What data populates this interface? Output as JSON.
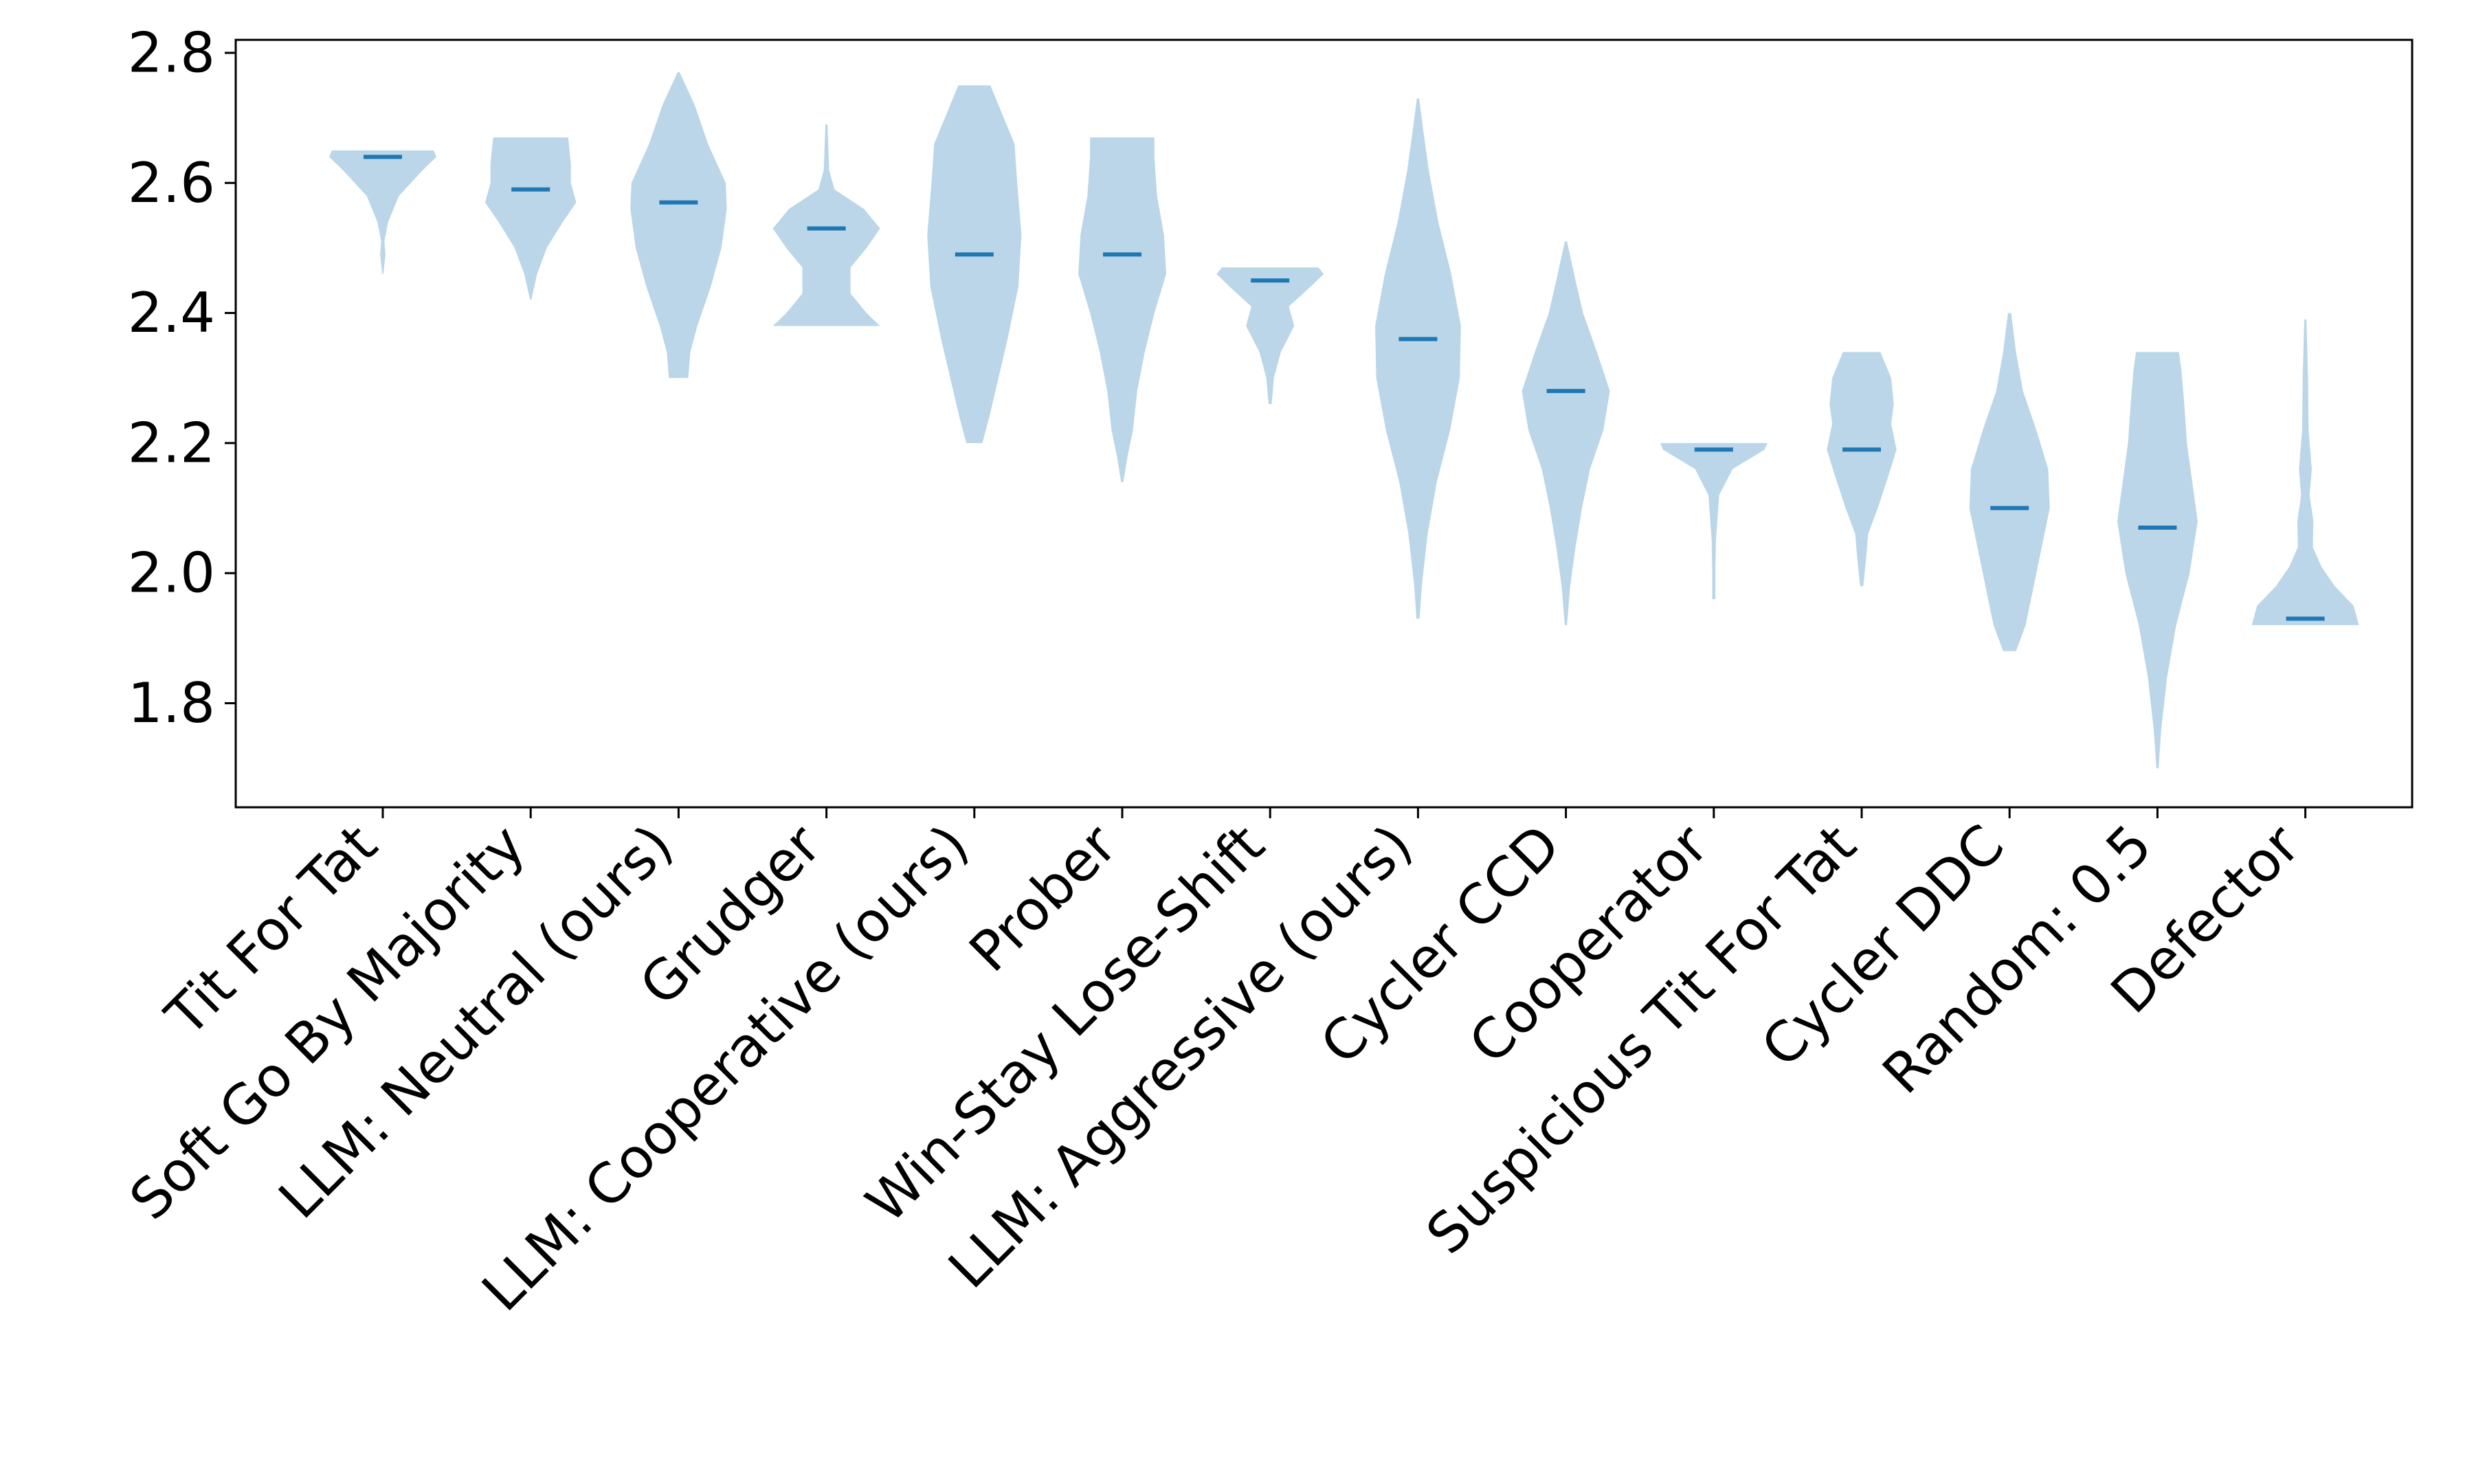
{
  "chart_data": {
    "type": "violin",
    "title": "",
    "xlabel": "",
    "ylabel": "",
    "ylim": [
      1.64,
      2.82
    ],
    "yticks": [
      "1.8",
      "2.0",
      "2.2",
      "2.4",
      "2.6",
      "2.8"
    ],
    "grid": false,
    "legend": "none",
    "colors": {
      "violin": "#1f77b4",
      "median": "#1f77b4"
    },
    "categories": [
      "Tit For Tat",
      "Soft Go By Majority",
      "LLM: Neutral (ours)",
      "Grudger",
      "LLM: Cooperative (ours)",
      "Prober",
      "Win-Stay Lose-Shift",
      "LLM: Aggressive (ours)",
      "Cycler CCD",
      "Cooperator",
      "Suspicious Tit For Tat",
      "Cycler DDC",
      "Random: 0.5",
      "Defector"
    ],
    "medians": [
      2.64,
      2.59,
      2.57,
      2.53,
      2.49,
      2.49,
      2.45,
      2.36,
      2.28,
      2.19,
      2.19,
      2.1,
      2.07,
      1.93
    ],
    "distributions": [
      {
        "min": 2.46,
        "max": 2.65,
        "profile": [
          [
            2.46,
            0.01
          ],
          [
            2.49,
            0.05
          ],
          [
            2.51,
            0.03
          ],
          [
            2.54,
            0.1
          ],
          [
            2.58,
            0.3
          ],
          [
            2.62,
            0.75
          ],
          [
            2.64,
            1.0
          ],
          [
            2.65,
            0.95
          ]
        ]
      },
      {
        "min": 2.42,
        "max": 2.67,
        "profile": [
          [
            2.42,
            0.01
          ],
          [
            2.46,
            0.12
          ],
          [
            2.5,
            0.3
          ],
          [
            2.54,
            0.6
          ],
          [
            2.57,
            0.85
          ],
          [
            2.6,
            0.75
          ],
          [
            2.63,
            0.75
          ],
          [
            2.67,
            0.7
          ]
        ]
      },
      {
        "min": 2.3,
        "max": 2.77,
        "profile": [
          [
            2.3,
            0.18
          ],
          [
            2.34,
            0.22
          ],
          [
            2.38,
            0.35
          ],
          [
            2.44,
            0.6
          ],
          [
            2.5,
            0.8
          ],
          [
            2.56,
            0.9
          ],
          [
            2.6,
            0.88
          ],
          [
            2.66,
            0.55
          ],
          [
            2.72,
            0.3
          ],
          [
            2.77,
            0.02
          ]
        ]
      },
      {
        "min": 2.38,
        "max": 2.69,
        "profile": [
          [
            2.38,
            1.0
          ],
          [
            2.4,
            0.75
          ],
          [
            2.43,
            0.45
          ],
          [
            2.47,
            0.45
          ],
          [
            2.5,
            0.75
          ],
          [
            2.53,
            1.0
          ],
          [
            2.56,
            0.7
          ],
          [
            2.59,
            0.15
          ],
          [
            2.62,
            0.05
          ],
          [
            2.69,
            0.02
          ]
        ]
      },
      {
        "min": 2.2,
        "max": 2.75,
        "profile": [
          [
            2.2,
            0.15
          ],
          [
            2.24,
            0.28
          ],
          [
            2.3,
            0.45
          ],
          [
            2.36,
            0.62
          ],
          [
            2.44,
            0.82
          ],
          [
            2.52,
            0.88
          ],
          [
            2.6,
            0.8
          ],
          [
            2.66,
            0.75
          ],
          [
            2.72,
            0.45
          ],
          [
            2.75,
            0.3
          ]
        ]
      },
      {
        "min": 2.14,
        "max": 2.67,
        "profile": [
          [
            2.14,
            0.02
          ],
          [
            2.18,
            0.1
          ],
          [
            2.22,
            0.2
          ],
          [
            2.28,
            0.28
          ],
          [
            2.34,
            0.42
          ],
          [
            2.4,
            0.6
          ],
          [
            2.46,
            0.82
          ],
          [
            2.52,
            0.78
          ],
          [
            2.58,
            0.65
          ],
          [
            2.64,
            0.6
          ],
          [
            2.67,
            0.6
          ]
        ]
      },
      {
        "min": 2.26,
        "max": 2.47,
        "profile": [
          [
            2.26,
            0.03
          ],
          [
            2.3,
            0.07
          ],
          [
            2.34,
            0.2
          ],
          [
            2.38,
            0.45
          ],
          [
            2.41,
            0.35
          ],
          [
            2.44,
            0.75
          ],
          [
            2.46,
            1.0
          ],
          [
            2.47,
            0.9
          ]
        ]
      },
      {
        "min": 1.93,
        "max": 2.73,
        "profile": [
          [
            1.93,
            0.03
          ],
          [
            1.98,
            0.07
          ],
          [
            2.06,
            0.18
          ],
          [
            2.14,
            0.35
          ],
          [
            2.22,
            0.6
          ],
          [
            2.3,
            0.78
          ],
          [
            2.38,
            0.8
          ],
          [
            2.46,
            0.62
          ],
          [
            2.54,
            0.38
          ],
          [
            2.62,
            0.2
          ],
          [
            2.68,
            0.1
          ],
          [
            2.73,
            0.02
          ]
        ]
      },
      {
        "min": 1.92,
        "max": 2.51,
        "profile": [
          [
            1.92,
            0.02
          ],
          [
            1.98,
            0.08
          ],
          [
            2.04,
            0.18
          ],
          [
            2.1,
            0.3
          ],
          [
            2.16,
            0.45
          ],
          [
            2.22,
            0.7
          ],
          [
            2.28,
            0.82
          ],
          [
            2.34,
            0.58
          ],
          [
            2.4,
            0.32
          ],
          [
            2.45,
            0.18
          ],
          [
            2.51,
            0.02
          ]
        ]
      },
      {
        "min": 1.96,
        "max": 2.2,
        "profile": [
          [
            1.96,
            0.03
          ],
          [
            2.0,
            0.03
          ],
          [
            2.05,
            0.04
          ],
          [
            2.12,
            0.1
          ],
          [
            2.16,
            0.35
          ],
          [
            2.19,
            0.95
          ],
          [
            2.2,
            1.0
          ]
        ]
      },
      {
        "min": 1.98,
        "max": 2.34,
        "profile": [
          [
            1.98,
            0.03
          ],
          [
            2.02,
            0.08
          ],
          [
            2.06,
            0.12
          ],
          [
            2.1,
            0.3
          ],
          [
            2.15,
            0.5
          ],
          [
            2.19,
            0.65
          ],
          [
            2.23,
            0.55
          ],
          [
            2.26,
            0.6
          ],
          [
            2.3,
            0.55
          ],
          [
            2.34,
            0.35
          ]
        ]
      },
      {
        "min": 1.88,
        "max": 2.4,
        "profile": [
          [
            1.88,
            0.12
          ],
          [
            1.92,
            0.3
          ],
          [
            1.98,
            0.45
          ],
          [
            2.04,
            0.6
          ],
          [
            2.1,
            0.75
          ],
          [
            2.16,
            0.72
          ],
          [
            2.22,
            0.5
          ],
          [
            2.28,
            0.25
          ],
          [
            2.34,
            0.12
          ],
          [
            2.4,
            0.03
          ]
        ]
      },
      {
        "min": 1.7,
        "max": 2.34,
        "profile": [
          [
            1.7,
            0.02
          ],
          [
            1.76,
            0.07
          ],
          [
            1.84,
            0.18
          ],
          [
            1.92,
            0.35
          ],
          [
            2.0,
            0.6
          ],
          [
            2.08,
            0.75
          ],
          [
            2.14,
            0.65
          ],
          [
            2.2,
            0.55
          ],
          [
            2.26,
            0.5
          ],
          [
            2.31,
            0.45
          ],
          [
            2.34,
            0.4
          ]
        ]
      },
      {
        "min": 1.92,
        "max": 2.39,
        "profile": [
          [
            1.92,
            1.0
          ],
          [
            1.95,
            0.9
          ],
          [
            1.98,
            0.55
          ],
          [
            2.01,
            0.3
          ],
          [
            2.04,
            0.14
          ],
          [
            2.08,
            0.15
          ],
          [
            2.12,
            0.08
          ],
          [
            2.16,
            0.12
          ],
          [
            2.22,
            0.06
          ],
          [
            2.3,
            0.05
          ],
          [
            2.39,
            0.02
          ]
        ]
      }
    ]
  }
}
